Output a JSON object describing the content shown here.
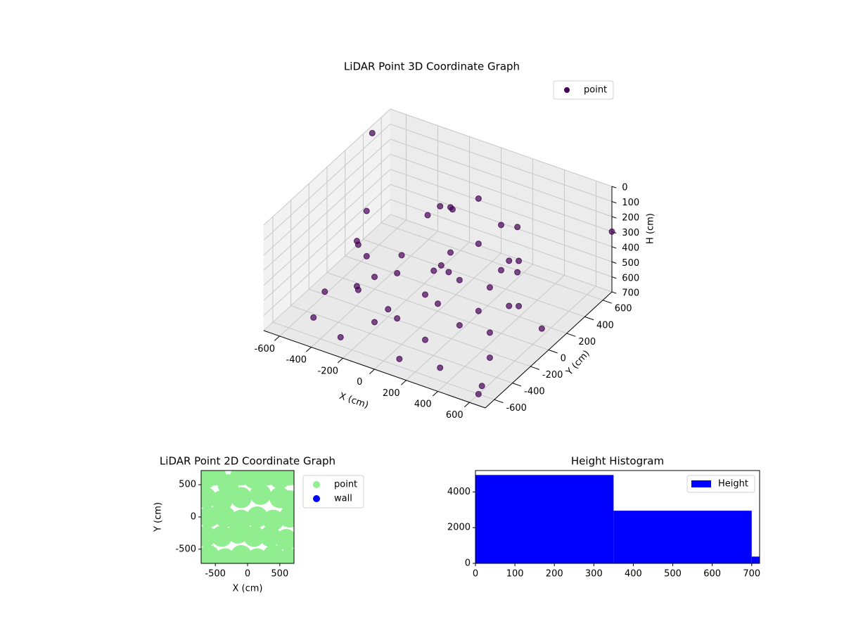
{
  "chart_data": [
    {
      "type": "scatter3d",
      "title": "LiDAR Point 3D Coordinate Graph",
      "xlabel": "X (cm)",
      "ylabel": "Y (cm)",
      "zlabel": "H (cm)",
      "xlim": [
        -700,
        700
      ],
      "ylim": [
        -700,
        700
      ],
      "zlim": [
        700,
        0
      ],
      "xticks": [
        -600,
        -400,
        -200,
        0,
        200,
        400,
        600
      ],
      "yticks": [
        -600,
        -400,
        -200,
        0,
        200,
        400,
        600
      ],
      "zticks": [
        0,
        100,
        200,
        300,
        400,
        500,
        600,
        700
      ],
      "grid": true,
      "legend": "upper right",
      "series": [
        {
          "name": "point",
          "color": "#440154",
          "x": [
            -450,
            -450,
            -420,
            -420,
            -320,
            -320,
            -160,
            -160,
            0,
            0,
            160,
            160,
            320,
            320,
            420,
            420,
            450,
            450,
            420,
            420,
            320,
            320,
            160,
            160,
            0,
            0,
            -160,
            -160,
            -100,
            -50,
            -150,
            50,
            80,
            20,
            -500,
            -300,
            100,
            300,
            500,
            600,
            -600,
            -200,
            200,
            0,
            -400,
            600,
            -700,
            700,
            650
          ],
          "y": [
            0,
            0,
            -160,
            -160,
            -320,
            -320,
            -420,
            -420,
            -450,
            -450,
            -420,
            -420,
            -320,
            -320,
            -160,
            -160,
            0,
            0,
            160,
            160,
            320,
            320,
            420,
            420,
            450,
            450,
            420,
            420,
            200,
            250,
            150,
            -50,
            -20,
            -80,
            -500,
            -550,
            -600,
            -500,
            -300,
            100,
            -200,
            -200,
            100,
            0,
            300,
            -600,
            500,
            700,
            -650
          ],
          "z": [
            200,
            500,
            300,
            600,
            200,
            500,
            300,
            600,
            200,
            500,
            300,
            600,
            200,
            500,
            300,
            600,
            200,
            500,
            300,
            600,
            200,
            500,
            300,
            600,
            200,
            500,
            300,
            600,
            150,
            180,
            200,
            350,
            400,
            380,
            650,
            680,
            650,
            690,
            660,
            650,
            680,
            650,
            680,
            650,
            640,
            700,
            50,
            300,
            600
          ]
        }
      ]
    },
    {
      "type": "scatter",
      "title": "LiDAR Point 2D Coordinate Graph",
      "xlabel": "X (cm)",
      "ylabel": "Y (cm)",
      "xlim": [
        -720,
        720
      ],
      "ylim": [
        -720,
        720
      ],
      "xticks": [
        -500,
        0,
        500
      ],
      "yticks": [
        -500,
        0,
        500
      ],
      "legend": "outside right",
      "series": [
        {
          "name": "point",
          "color": "#90ee90",
          "x": [
            -650,
            -500,
            -300,
            -100,
            100,
            300,
            500,
            650,
            -650,
            -400,
            -100,
            200,
            500,
            650,
            -600,
            -350,
            -100,
            150,
            400,
            650,
            -650,
            -400,
            -150,
            100,
            350,
            600,
            -600,
            -350,
            -100,
            150,
            400,
            650
          ],
          "y": [
            600,
            650,
            500,
            650,
            600,
            650,
            600,
            650,
            300,
            250,
            300,
            350,
            300,
            250,
            0,
            0,
            -50,
            0,
            -50,
            0,
            -300,
            -300,
            -250,
            -300,
            -300,
            -350,
            -600,
            -650,
            -600,
            -650,
            -600,
            -650
          ]
        },
        {
          "name": "wall",
          "color": "#0000ff",
          "x": [],
          "y": []
        }
      ]
    },
    {
      "type": "histogram",
      "title": "Height Histogram",
      "bins": [
        0,
        350,
        700,
        720
      ],
      "xlim": [
        0,
        720
      ],
      "ylim": [
        0,
        5200
      ],
      "xticks": [
        0,
        100,
        200,
        300,
        400,
        500,
        600,
        700
      ],
      "yticks": [
        0,
        2000,
        4000
      ],
      "legend": "upper right",
      "series": [
        {
          "name": "Height",
          "color": "#0000ff",
          "values": [
            4950,
            2950,
            380
          ]
        }
      ]
    }
  ]
}
